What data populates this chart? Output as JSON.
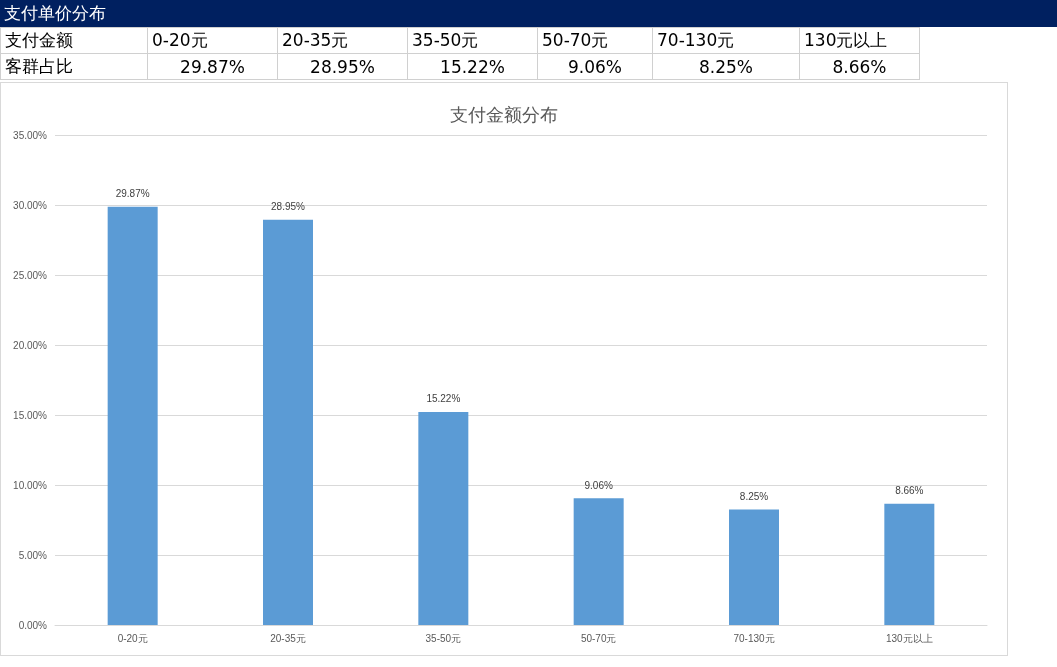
{
  "chart_data": {
    "type": "bar",
    "title": "支付单价分布",
    "subtitle": "支付金额分布",
    "annotations": [
      "支付金额",
      "客群占比"
    ],
    "categories": [
      "0-20元",
      "20-35元",
      "35-50元",
      "50-70元",
      "70-130元",
      "130元以上"
    ],
    "values": [
      29.87,
      28.95,
      15.22,
      9.06,
      8.25,
      8.66
    ],
    "value_labels": [
      "29.87%",
      "28.95%",
      "15.22%",
      "9.06%",
      "8.25%",
      "8.66%"
    ],
    "color": "#5b9bd5",
    "ylim": [
      0,
      35
    ],
    "yticks": [
      {
        "value": 0,
        "label": "0.00%"
      },
      {
        "value": 5,
        "label": "5.00%"
      },
      {
        "value": 10,
        "label": "10.00%"
      },
      {
        "value": 15,
        "label": "15.00%"
      },
      {
        "value": 20,
        "label": "20.00%"
      },
      {
        "value": 25,
        "label": "25.00%"
      },
      {
        "value": 30,
        "label": "30.00%"
      },
      {
        "value": 35,
        "label": "35.00%"
      }
    ],
    "grid": "y"
  }
}
